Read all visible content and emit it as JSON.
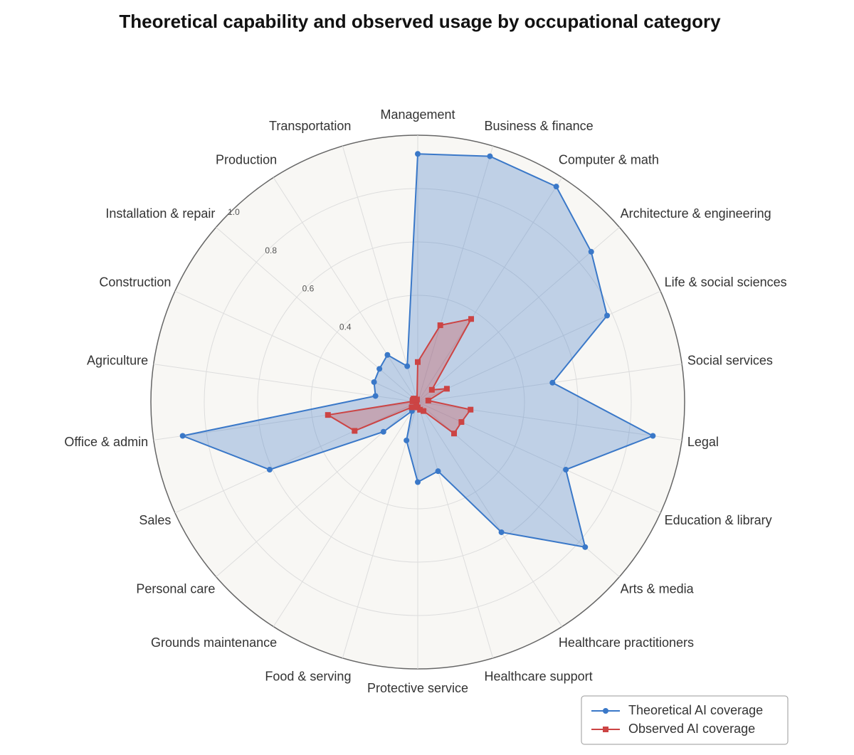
{
  "chart_data": {
    "type": "radar",
    "title": "Theoretical capability and observed usage by occupational category",
    "categories": [
      "Management",
      "Business & finance",
      "Computer & math",
      "Architecture & engineering",
      "Life & social sciences",
      "Social services",
      "Legal",
      "Education & library",
      "Arts & media",
      "Healthcare practitioners",
      "Healthcare support",
      "Protective service",
      "Food & serving",
      "Grounds maintenance",
      "Personal care",
      "Sales",
      "Office & admin",
      "Agriculture",
      "Construction",
      "Installation & repair",
      "Production",
      "Transportation"
    ],
    "series": [
      {
        "name": "Theoretical AI coverage",
        "color": "#3a78c8",
        "marker": "circle",
        "values": [
          0.93,
          0.96,
          0.96,
          0.86,
          0.78,
          0.51,
          0.89,
          0.61,
          0.83,
          0.58,
          0.27,
          0.3,
          0.15,
          0.04,
          0.17,
          0.61,
          0.89,
          0.16,
          0.18,
          0.19,
          0.21,
          0.14
        ]
      },
      {
        "name": "Observed AI coverage",
        "color": "#cc4444",
        "marker": "square",
        "values": [
          0.15,
          0.3,
          0.37,
          0.07,
          0.12,
          0.04,
          0.2,
          0.18,
          0.18,
          0.04,
          0.03,
          0.02,
          0.02,
          0.01,
          0.03,
          0.26,
          0.34,
          0.02,
          0.02,
          0.02,
          0.01,
          0.01
        ]
      }
    ],
    "ylim": [
      0,
      1
    ],
    "yticks": [
      {
        "value": 0.4,
        "label": "0.4"
      },
      {
        "value": 0.6,
        "label": "0.6"
      },
      {
        "value": 0.8,
        "label": "0.8"
      },
      {
        "value": 1.0,
        "label": "1.0"
      }
    ],
    "grid": true,
    "legend": "lower right"
  }
}
